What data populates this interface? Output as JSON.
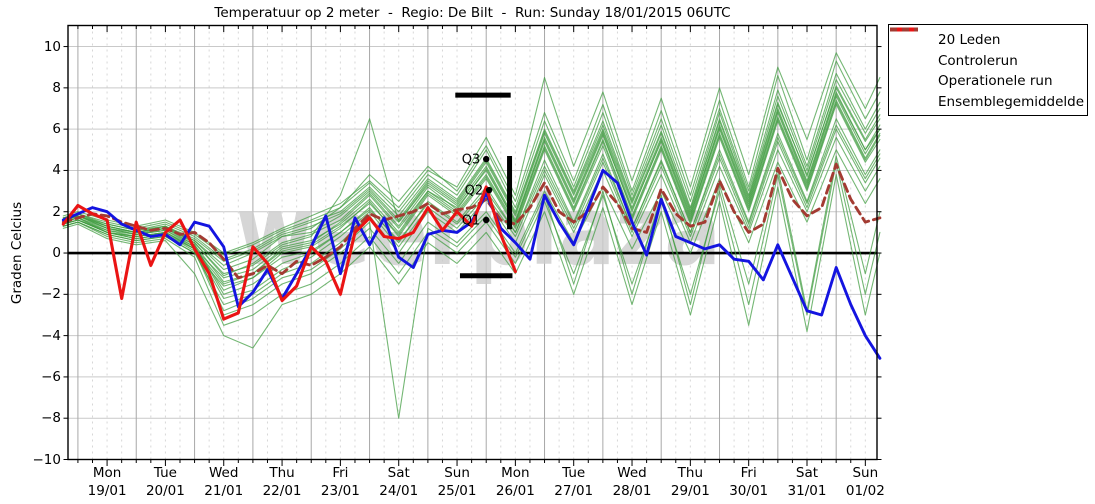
{
  "title": "Temperatuur op 2 meter  -  Regio: De Bilt  -  Run: Sunday 18/01/2015 06UTC",
  "ylabel": "Graden Celcius",
  "watermark": "weerplaza",
  "legend": {
    "items": [
      {
        "label": "20 Leden",
        "color": "#4ba04b",
        "width": 1.5,
        "dash": ""
      },
      {
        "label": "Controlerun",
        "color": "#1414e0",
        "width": 4,
        "dash": ""
      },
      {
        "label": "Operationele run",
        "color": "#ea1414",
        "width": 4,
        "dash": ""
      },
      {
        "label": "Ensemblegemiddelde",
        "color": "#a33b32",
        "width": 4,
        "dash": "7,5"
      }
    ]
  },
  "chart_data": {
    "type": "line",
    "title": "Temperatuur op 2 meter  -  Regio: De Bilt  -  Run: Sunday 18/01/2015 06UTC",
    "ylabel": "Graden Celcius",
    "grid": "on",
    "legend_position": "outside-top-right",
    "ylim": [
      -10,
      11.02
    ],
    "t_range": [
      0.83,
      14.7
    ],
    "yticks": [
      {
        "v": 10,
        "label": "10"
      },
      {
        "v": 8,
        "label": "8"
      },
      {
        "v": 6,
        "label": "6"
      },
      {
        "v": 4,
        "label": "4"
      },
      {
        "v": 2,
        "label": "2"
      },
      {
        "v": 0,
        "label": "0"
      },
      {
        "v": -2,
        "label": "−2"
      },
      {
        "v": -4,
        "label": "−4"
      },
      {
        "v": -6,
        "label": "−6"
      },
      {
        "v": -8,
        "label": "−8"
      },
      {
        "v": -10,
        "label": "−10"
      }
    ],
    "x_days": [
      {
        "name": "Mon",
        "date": "19/01"
      },
      {
        "name": "Tue",
        "date": "20/01"
      },
      {
        "name": "Wed",
        "date": "21/01"
      },
      {
        "name": "Thu",
        "date": "22/01"
      },
      {
        "name": "Fri",
        "date": "23/01"
      },
      {
        "name": "Sat",
        "date": "24/01"
      },
      {
        "name": "Sun",
        "date": "25/01"
      },
      {
        "name": "Mon",
        "date": "26/01"
      },
      {
        "name": "Tue",
        "date": "27/01"
      },
      {
        "name": "Wed",
        "date": "28/01"
      },
      {
        "name": "Thu",
        "date": "29/01"
      },
      {
        "name": "Fri",
        "date": "30/01"
      },
      {
        "name": "Sat",
        "date": "31/01"
      },
      {
        "name": "Sun",
        "date": "01/02"
      }
    ],
    "series": {
      "members": {
        "name": "20 Leden",
        "color": "#3f9b3f",
        "opacity": 0.72,
        "line_width": 1.1,
        "t": [
          0.75,
          1,
          1.5,
          2,
          2.5,
          3,
          3.5,
          4,
          4.5,
          5,
          5.5,
          6,
          6.5,
          7,
          7.5,
          8,
          8.5,
          9,
          9.5,
          10,
          10.5,
          11,
          11.5,
          12,
          12.5,
          13,
          13.5,
          14,
          14.5,
          14.75
        ],
        "values": [
          [
            1.6,
            1.8,
            1.2,
            1.0,
            1.3,
            0.6,
            -0.8,
            -0.3,
            0.8,
            1.2,
            2.2,
            3.8,
            2.5,
            4.2,
            3.0,
            5.2,
            2.5,
            6.8,
            3.5,
            7.2,
            3.0,
            6.9,
            2.8,
            7.4,
            3.2,
            8.6,
            4.5,
            9.3,
            6.5,
            7.8
          ],
          [
            1.5,
            1.7,
            1.0,
            0.8,
            1.0,
            0.2,
            -1.5,
            -1.0,
            0.2,
            0.5,
            1.5,
            2.8,
            1.2,
            3.0,
            2.2,
            4.0,
            1.5,
            5.5,
            2.5,
            5.8,
            2.0,
            5.5,
            1.8,
            6.2,
            2.5,
            7.0,
            3.5,
            7.8,
            5.0,
            6.0
          ],
          [
            1.4,
            1.6,
            1.1,
            0.9,
            1.2,
            0.4,
            -2.0,
            -1.5,
            -0.5,
            0.0,
            1.0,
            2.2,
            0.5,
            2.5,
            1.5,
            3.2,
            1.0,
            4.5,
            1.5,
            4.8,
            1.2,
            4.5,
            1.0,
            5.0,
            1.5,
            5.8,
            2.5,
            6.5,
            3.8,
            5.0
          ],
          [
            1.7,
            1.9,
            1.4,
            1.1,
            1.4,
            0.8,
            -0.3,
            0.2,
            1.0,
            1.5,
            2.0,
            3.2,
            1.8,
            3.6,
            2.6,
            4.6,
            2.0,
            6.0,
            3.0,
            6.4,
            2.6,
            6.2,
            2.2,
            6.8,
            2.8,
            7.6,
            4.0,
            8.4,
            5.8,
            7.0
          ],
          [
            1.5,
            1.8,
            1.3,
            1.0,
            1.2,
            0.5,
            -1.0,
            -0.6,
            0.4,
            0.8,
            2.8,
            6.5,
            1.5,
            3.4,
            2.4,
            4.4,
            1.8,
            5.8,
            2.8,
            6.0,
            2.4,
            5.8,
            2.0,
            6.4,
            2.6,
            7.2,
            3.8,
            8.0,
            5.4,
            6.5
          ],
          [
            1.3,
            1.5,
            0.9,
            0.6,
            0.8,
            0.0,
            -2.5,
            -2.0,
            -1.0,
            -0.5,
            0.5,
            1.8,
            0.0,
            2.0,
            1.0,
            2.6,
            0.5,
            3.8,
            1.0,
            4.0,
            0.8,
            3.8,
            0.5,
            4.2,
            1.0,
            5.0,
            2.0,
            5.6,
            3.0,
            4.2
          ],
          [
            1.6,
            1.8,
            1.2,
            0.9,
            1.1,
            0.3,
            -1.8,
            -1.2,
            0.0,
            0.3,
            1.2,
            2.5,
            0.8,
            2.8,
            1.8,
            3.6,
            1.2,
            5.0,
            2.0,
            5.2,
            1.6,
            5.0,
            1.4,
            5.6,
            2.0,
            6.4,
            3.0,
            7.2,
            4.4,
            5.5
          ],
          [
            1.4,
            1.6,
            1.0,
            0.7,
            0.9,
            0.1,
            -3.0,
            -2.5,
            -1.5,
            -1.0,
            0.0,
            1.2,
            -0.5,
            1.5,
            0.5,
            2.0,
            0.0,
            3.0,
            0.5,
            3.2,
            0.2,
            3.0,
            0.0,
            3.6,
            0.5,
            4.4,
            1.5,
            5.0,
            2.4,
            3.6
          ],
          [
            1.8,
            2.0,
            1.6,
            1.3,
            1.6,
            1.0,
            0.0,
            0.5,
            1.2,
            1.8,
            2.4,
            3.5,
            2.2,
            4.0,
            3.2,
            5.6,
            2.8,
            8.5,
            4.2,
            7.8,
            3.5,
            7.5,
            3.2,
            8.0,
            3.8,
            9.0,
            5.5,
            9.7,
            7.0,
            8.5
          ],
          [
            1.5,
            1.7,
            1.1,
            0.8,
            1.0,
            0.2,
            -1.2,
            -0.8,
            0.3,
            0.6,
            1.4,
            2.6,
            1.0,
            3.0,
            2.0,
            3.8,
            1.4,
            5.2,
            2.2,
            5.5,
            1.8,
            5.2,
            1.6,
            5.8,
            2.2,
            6.6,
            3.2,
            7.4,
            4.6,
            5.8
          ],
          [
            1.3,
            1.5,
            0.8,
            0.5,
            0.7,
            -0.2,
            -3.5,
            -3.0,
            -2.0,
            -1.5,
            -0.5,
            0.8,
            -1.0,
            1.0,
            0.0,
            1.5,
            -0.5,
            2.5,
            -1.0,
            2.8,
            -1.5,
            2.5,
            -2.0,
            3.0,
            -2.5,
            3.8,
            -3.0,
            4.4,
            -2.0,
            1.0
          ],
          [
            1.6,
            1.8,
            1.3,
            1.0,
            1.2,
            0.6,
            -0.6,
            0.0,
            0.8,
            1.0,
            1.8,
            3.0,
            1.5,
            3.3,
            2.3,
            4.2,
            1.6,
            5.6,
            2.6,
            5.9,
            2.2,
            5.6,
            1.9,
            6.1,
            2.4,
            6.9,
            3.4,
            7.7,
            5.0,
            6.2
          ],
          [
            1.4,
            1.6,
            1.0,
            0.8,
            1.0,
            0.3,
            -2.2,
            -1.8,
            -0.8,
            -0.2,
            0.8,
            2.0,
            0.3,
            2.2,
            1.2,
            2.8,
            0.8,
            4.0,
            1.2,
            4.4,
            1.0,
            4.2,
            0.8,
            4.6,
            1.2,
            5.4,
            2.2,
            6.0,
            3.4,
            4.6
          ],
          [
            1.7,
            1.9,
            1.5,
            1.2,
            1.5,
            0.9,
            -0.1,
            0.4,
            1.1,
            1.6,
            2.2,
            3.4,
            2.0,
            3.8,
            2.8,
            5.0,
            2.2,
            6.4,
            3.2,
            6.8,
            2.8,
            6.5,
            2.5,
            7.0,
            3.0,
            7.9,
            4.2,
            8.7,
            6.0,
            7.3
          ],
          [
            1.2,
            1.4,
            0.7,
            0.4,
            0.6,
            -1.0,
            -4.0,
            -4.6,
            -2.5,
            -2.0,
            -1.0,
            0.3,
            -1.5,
            0.5,
            -0.5,
            1.0,
            -1.0,
            2.0,
            -2.0,
            2.2,
            -2.5,
            2.0,
            -3.0,
            2.5,
            -3.5,
            3.2,
            -3.8,
            3.8,
            -3.0,
            0.0
          ],
          [
            1.5,
            1.7,
            1.2,
            0.9,
            1.1,
            0.4,
            -1.4,
            -1.0,
            0.1,
            0.4,
            1.3,
            2.4,
            0.9,
            2.9,
            1.9,
            3.7,
            1.3,
            5.1,
            2.1,
            5.4,
            1.7,
            5.1,
            1.5,
            5.7,
            2.1,
            6.5,
            3.1,
            7.3,
            4.5,
            5.7
          ],
          [
            1.4,
            1.6,
            1.0,
            0.7,
            0.9,
            0.2,
            -2.8,
            -2.2,
            -1.2,
            -0.8,
            0.2,
            1.5,
            -8.0,
            1.2,
            0.3,
            1.8,
            -0.2,
            2.8,
            -1.5,
            3.0,
            -2.0,
            2.8,
            -2.5,
            3.3,
            -1.5,
            4.1,
            -2.8,
            4.7,
            -1.0,
            2.0
          ],
          [
            1.6,
            1.8,
            1.4,
            1.1,
            1.3,
            0.7,
            -0.4,
            0.1,
            0.9,
            1.3,
            1.9,
            3.1,
            1.6,
            3.5,
            2.5,
            4.5,
            1.9,
            5.9,
            2.9,
            6.2,
            2.5,
            5.9,
            2.1,
            6.5,
            2.7,
            7.3,
            3.7,
            8.1,
            5.5,
            6.7
          ],
          [
            1.3,
            1.5,
            0.9,
            0.6,
            0.8,
            0.0,
            -1.6,
            -1.2,
            -0.2,
            0.1,
            1.0,
            2.1,
            0.6,
            2.4,
            1.4,
            3.0,
            1.0,
            4.2,
            1.4,
            4.6,
            1.2,
            4.4,
            1.0,
            4.8,
            1.4,
            5.6,
            2.4,
            6.2,
            3.6,
            4.8
          ],
          [
            1.7,
            1.9,
            1.3,
            1.0,
            1.3,
            0.5,
            -1.1,
            -0.5,
            0.5,
            0.9,
            1.6,
            2.9,
            1.3,
            3.2,
            2.1,
            4.1,
            1.5,
            5.4,
            2.4,
            5.7,
            2.1,
            5.4,
            1.7,
            6.0,
            2.3,
            6.8,
            3.3,
            7.6,
            4.8,
            6.0
          ]
        ]
      },
      "control": {
        "name": "Controlerun",
        "color": "#1414e0",
        "line_width": 2.9,
        "t_start": 0.75,
        "t_step": 0.25,
        "values": [
          1.6,
          1.9,
          2.2,
          2.0,
          1.4,
          1.1,
          0.8,
          0.9,
          0.4,
          1.5,
          1.3,
          0.3,
          -2.6,
          -1.9,
          -0.8,
          -2.2,
          -1.0,
          0.3,
          1.8,
          -1.0,
          1.7,
          0.4,
          1.7,
          -0.2,
          -0.7,
          0.9,
          1.1,
          1.0,
          1.5,
          2.9,
          1.2,
          0.5,
          -0.3,
          2.8,
          1.5,
          0.4,
          2.2,
          4.0,
          3.4,
          1.5,
          -0.1,
          2.6,
          0.8,
          0.5,
          0.2,
          0.4,
          -0.3,
          -0.4,
          -1.3,
          0.4,
          -1.2,
          -2.8,
          -3.0,
          -0.7,
          -2.5,
          -4.0,
          -5.1
        ]
      },
      "operational": {
        "name": "Operationele run",
        "color": "#ea1414",
        "line_width": 3.1,
        "t_start": 0.75,
        "t_step": 0.25,
        "values": [
          1.4,
          2.3,
          1.9,
          1.6,
          -2.2,
          1.5,
          -0.6,
          1.0,
          1.6,
          0.2,
          -1.0,
          -3.2,
          -2.9,
          0.3,
          -0.5,
          -2.3,
          -1.6,
          0.3,
          -0.4,
          -2.0,
          1.0,
          1.7,
          0.8,
          0.7,
          1.0,
          2.2,
          1.1,
          2.0,
          1.3,
          3.2,
          0.9,
          -0.9
        ]
      },
      "mean": {
        "name": "Ensemblegemiddelde",
        "color": "#a33b32",
        "line_width": 2.9,
        "dash": "8,5",
        "t_start": 0.75,
        "t_step": 0.25,
        "values": [
          1.5,
          1.7,
          1.9,
          1.8,
          1.5,
          1.3,
          1.1,
          1.2,
          0.9,
          1.0,
          0.5,
          -0.3,
          -1.2,
          -1.0,
          -0.6,
          -1.0,
          -0.4,
          -0.6,
          -0.2,
          0.3,
          1.2,
          1.9,
          1.6,
          1.8,
          2.0,
          2.4,
          1.9,
          2.1,
          2.2,
          2.6,
          1.6,
          1.4,
          2.2,
          3.4,
          2.0,
          1.5,
          2.0,
          3.2,
          2.4,
          1.2,
          1.0,
          3.1,
          1.9,
          1.3,
          1.5,
          3.5,
          2.0,
          1.0,
          1.4,
          4.1,
          2.6,
          1.8,
          2.2,
          4.3,
          2.6,
          1.5,
          1.7
        ]
      }
    },
    "annotations": {
      "quartile_points": [
        {
          "label": "Q3",
          "t": 8.0,
          "value": 4.55
        },
        {
          "label": "Q2",
          "t": 8.05,
          "value": 3.05
        },
        {
          "label": "Q1",
          "t": 8.0,
          "value": 1.6
        }
      ],
      "bars": [
        {
          "type": "h",
          "t1": 7.47,
          "t2": 8.42,
          "value": 7.65
        },
        {
          "type": "h",
          "t1": 7.55,
          "t2": 8.45,
          "value": -1.1
        },
        {
          "type": "v",
          "t": 8.4,
          "v1": 1.15,
          "v2": 4.7
        }
      ]
    }
  }
}
